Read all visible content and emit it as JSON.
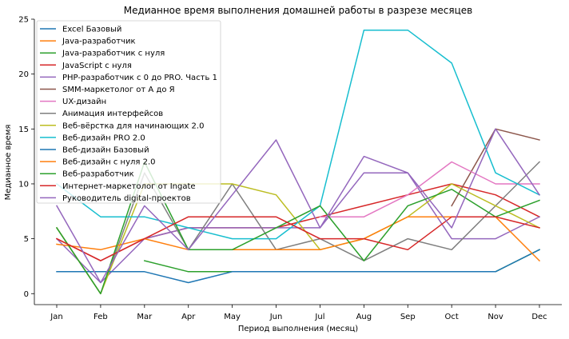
{
  "chart_data": {
    "type": "line",
    "title": "Медианное время выполнения домашней работы в разрезе месяцев",
    "xlabel": "Период выполнения (месяц)",
    "ylabel": "Медианное время",
    "categories": [
      "Jan",
      "Feb",
      "Mar",
      "Apr",
      "May",
      "Jun",
      "Jul",
      "Aug",
      "Sep",
      "Oct",
      "Nov",
      "Dec"
    ],
    "ylim": [
      -1,
      25
    ],
    "yticks": [
      0,
      5,
      10,
      15,
      20,
      25
    ],
    "grid": false,
    "legend_position": "top-left",
    "series": [
      {
        "name": "Excel Базовый",
        "color": "#1f77b4",
        "values": [
          null,
          null,
          null,
          null,
          null,
          null,
          null,
          null,
          null,
          null,
          null,
          null
        ]
      },
      {
        "name": "Java-разработчик",
        "color": "#ff7f0e",
        "values": [
          null,
          null,
          null,
          null,
          null,
          null,
          null,
          null,
          null,
          null,
          null,
          null
        ]
      },
      {
        "name": "Java-разработчик с нуля",
        "color": "#2ca02c",
        "values": [
          null,
          null,
          3,
          2,
          2,
          2,
          2,
          2,
          2,
          2,
          2,
          4
        ]
      },
      {
        "name": "JavaScript с нуля",
        "color": "#d62728",
        "values": [
          5,
          3,
          5,
          6,
          6,
          6,
          7,
          8,
          9,
          10,
          9,
          7
        ]
      },
      {
        "name": "PHP-разработчик с 0 до PRO. Часть 1",
        "color": "#9467bd",
        "values": [
          5,
          1,
          5,
          6,
          6,
          6,
          6,
          11,
          11,
          5,
          5,
          7
        ]
      },
      {
        "name": "SMM-маркетолог от А до Я",
        "color": "#8c564b",
        "values": [
          null,
          null,
          null,
          null,
          null,
          null,
          null,
          null,
          null,
          8,
          15,
          14
        ]
      },
      {
        "name": "UX-дизайн",
        "color": "#e377c2",
        "values": [
          null,
          null,
          null,
          null,
          null,
          null,
          7,
          7,
          9,
          12,
          10,
          10
        ]
      },
      {
        "name": "Анимация интерфейсов",
        "color": "#7f7f7f",
        "values": [
          6,
          0,
          11,
          4,
          10,
          4,
          5,
          3,
          5,
          4,
          8,
          12
        ]
      },
      {
        "name": "Веб-вёрстка для начинающих 2.0",
        "color": "#bcbd22",
        "values": [
          6,
          0,
          10,
          10,
          10,
          9,
          4,
          5,
          7,
          10,
          8,
          6
        ]
      },
      {
        "name": "Веб-дизайн PRO 2.0",
        "color": "#17becf",
        "values": [
          10,
          7,
          7,
          6,
          5,
          5,
          8,
          24,
          24,
          21,
          11,
          9
        ]
      },
      {
        "name": "Веб-дизайн Базовый",
        "color": "#1f77b4",
        "values": [
          2,
          2,
          2,
          1,
          2,
          2,
          2,
          2,
          2,
          2,
          2,
          4
        ]
      },
      {
        "name": "Веб-дизайн с нуля 2.0",
        "color": "#ff7f0e",
        "values": [
          4.5,
          4,
          5,
          4,
          4,
          4,
          4,
          5,
          7,
          7,
          7,
          3
        ]
      },
      {
        "name": "Веб-разработчик",
        "color": "#2ca02c",
        "values": [
          6,
          0,
          12,
          4,
          4,
          6,
          8,
          3,
          8,
          9.5,
          7,
          8.5
        ]
      },
      {
        "name": "Интернет-маркетолог от Ingate",
        "color": "#d62728",
        "values": [
          5,
          3,
          5,
          7,
          7,
          7,
          5,
          5,
          4,
          7,
          7,
          6
        ]
      },
      {
        "name": "Руководитель digital-проектов",
        "color": "#9467bd",
        "values": [
          8,
          1,
          8,
          4,
          9,
          14,
          6,
          12.5,
          11,
          6,
          15,
          9
        ]
      }
    ]
  }
}
